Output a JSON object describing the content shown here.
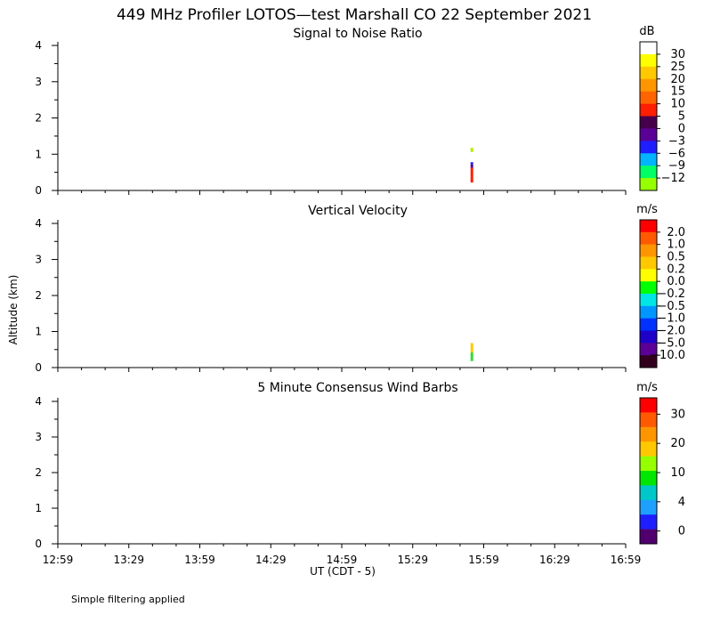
{
  "title": "449 MHz Profiler LOTOS—test Marshall CO 22 September 2021",
  "ylabel": "Altitude (km)",
  "xlabel": "UT  (CDT - 5)",
  "x_ticks": [
    "12:59",
    "13:29",
    "13:59",
    "14:29",
    "14:59",
    "15:29",
    "15:59",
    "16:29",
    "16:59"
  ],
  "y_ticks": [
    "0",
    "1",
    "2",
    "3",
    "4"
  ],
  "footnote": "Simple filtering applied",
  "chart_data": [
    {
      "type": "heatmap",
      "title": "Signal to Noise Ratio",
      "units": "dB",
      "xlim": [
        "12:59",
        "16:59"
      ],
      "ylim": [
        0,
        4.1
      ],
      "colorbar": {
        "labels": [
          "30",
          "25",
          "20",
          "15",
          "10",
          "5",
          "0",
          "−3",
          "−6",
          "−9",
          "−12"
        ],
        "colors": [
          "#ffffff",
          "#ffff00",
          "#ffc800",
          "#ff9600",
          "#ff6400",
          "#ff1e00",
          "#46004b",
          "#5a0096",
          "#1e1eff",
          "#00b4ff",
          "#00ff64",
          "#96ff00"
        ]
      },
      "cells": [
        {
          "time": "15:54",
          "alt_bottom": 1.06,
          "alt_top": 1.18,
          "color": "#b4f000"
        },
        {
          "time": "15:54",
          "alt_bottom": 0.72,
          "alt_top": 0.78,
          "color": "#1e1eff"
        },
        {
          "time": "15:54",
          "alt_bottom": 0.62,
          "alt_top": 0.72,
          "color": "#5a0096"
        },
        {
          "time": "15:54",
          "alt_bottom": 0.22,
          "alt_top": 0.62,
          "color": "#ff1e00"
        }
      ]
    },
    {
      "type": "heatmap",
      "title": "Vertical Velocity",
      "units": "m/s",
      "xlim": [
        "12:59",
        "16:59"
      ],
      "ylim": [
        0,
        4.1
      ],
      "colorbar": {
        "labels": [
          "2.0",
          "1.0",
          "0.5",
          "0.2",
          "0.0",
          "−0.2",
          "−0.5",
          "−1.0",
          "−2.0",
          "−5.0",
          "−10.0"
        ],
        "colors": [
          "#ff0000",
          "#ff5a00",
          "#ff9600",
          "#ffc800",
          "#ffff00",
          "#00ff00",
          "#00e6e6",
          "#0096ff",
          "#0032ff",
          "#1e00c8",
          "#5a0096",
          "#32001e"
        ]
      },
      "cells": [
        {
          "time": "15:54",
          "alt_bottom": 0.42,
          "alt_top": 0.68,
          "color": "#ffc800"
        },
        {
          "time": "15:54",
          "alt_bottom": 0.18,
          "alt_top": 0.42,
          "color": "#32dc32"
        }
      ]
    },
    {
      "type": "heatmap",
      "title": "5 Minute Consensus Wind Barbs",
      "units": "m/s",
      "xlim": [
        "12:59",
        "16:59"
      ],
      "ylim": [
        0,
        4.1
      ],
      "colorbar": {
        "labels": [
          "30",
          "20",
          "10",
          "4",
          "0"
        ],
        "colors": [
          "#ff0000",
          "#ff5a00",
          "#ff9600",
          "#ffc800",
          "#96ff00",
          "#00e600",
          "#00c8c8",
          "#1ea0ff",
          "#1e1eff",
          "#50006e"
        ]
      },
      "cells": []
    }
  ]
}
